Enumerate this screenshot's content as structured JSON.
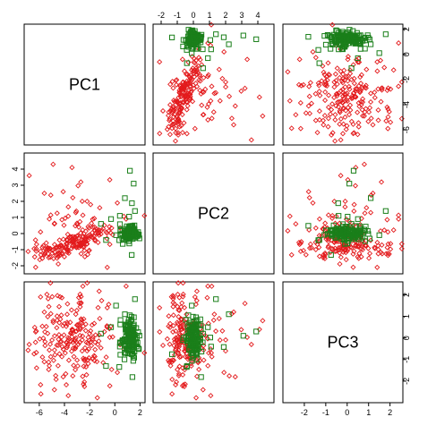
{
  "chart_data": {
    "type": "scatter",
    "layout": "pairs-matrix",
    "variables": [
      "PC1",
      "PC2",
      "PC3"
    ],
    "ranges": {
      "PC1": [
        -7.2,
        2.4
      ],
      "PC2": [
        -2.5,
        5.0
      ],
      "PC3": [
        -3.0,
        2.6
      ]
    },
    "ticks": {
      "PC1": [
        -6,
        -4,
        -2,
        0,
        2
      ],
      "PC2": [
        -2,
        -1,
        0,
        1,
        2,
        3,
        4
      ],
      "PC3": [
        -2,
        -1,
        0,
        1,
        2
      ]
    },
    "tick_labels": {
      "PC1": [
        "-6",
        "-4",
        "-2",
        "0",
        "2"
      ],
      "PC2": [
        "-2",
        "-1",
        "0",
        "1",
        "2",
        "3",
        "4"
      ],
      "PC3": [
        "-2",
        "-1",
        "0",
        "1",
        "2"
      ]
    },
    "grid": false,
    "series": [
      {
        "color": "#e31a1c",
        "marker": "diamond",
        "pc1_mean": -3.2,
        "pc1_sd": 1.6,
        "pc2_base": -0.6,
        "pc2_slope": 0.25,
        "pc2_sd": 0.4,
        "pc3_mean": -0.1,
        "pc3_sd": 1.1,
        "count": 200,
        "points": [
          [
            -6.8,
            3.6,
            -0.3
          ],
          [
            -5.6,
            2.5,
            1.2
          ],
          [
            -4.9,
            4.3,
            0.8
          ],
          [
            -4.1,
            2.6,
            -1.8
          ],
          [
            -3.4,
            4.1,
            0.4
          ],
          [
            -5.9,
            0.1,
            1.9
          ],
          [
            -4.8,
            0.6,
            -2.4
          ],
          [
            -3.1,
            1.3,
            1.1
          ],
          [
            -2.2,
            2.0,
            -0.6
          ],
          [
            -6.3,
            -0.4,
            -0.2
          ],
          [
            -1.2,
            1.6,
            0.9
          ],
          [
            0.2,
            1.9,
            -1.6
          ],
          [
            -2.7,
            3.2,
            1.6
          ],
          [
            0.9,
            0.9,
            2.4
          ],
          [
            -0.6,
            -2.1,
            1.4
          ]
        ]
      },
      {
        "color": "#1a7f1a",
        "marker": "square",
        "pc1_mean": 1.15,
        "pc1_sd": 0.35,
        "pc2_base": 0.05,
        "pc2_sd": 0.35,
        "pc3_mean": 0.0,
        "pc3_sd": 0.55,
        "count": 130,
        "points": [
          [
            1.2,
            3.9,
            0.3
          ],
          [
            1.5,
            3.1,
            0.1
          ],
          [
            0.8,
            2.2,
            1.1
          ],
          [
            1.6,
            1.4,
            1.8
          ],
          [
            0.4,
            1.1,
            -0.4
          ],
          [
            -0.3,
            0.9,
            0.5
          ],
          [
            -1.1,
            0.6,
            0.2
          ],
          [
            0.1,
            -0.1,
            1.5
          ],
          [
            -0.7,
            -0.4,
            -1.3
          ]
        ]
      }
    ]
  }
}
